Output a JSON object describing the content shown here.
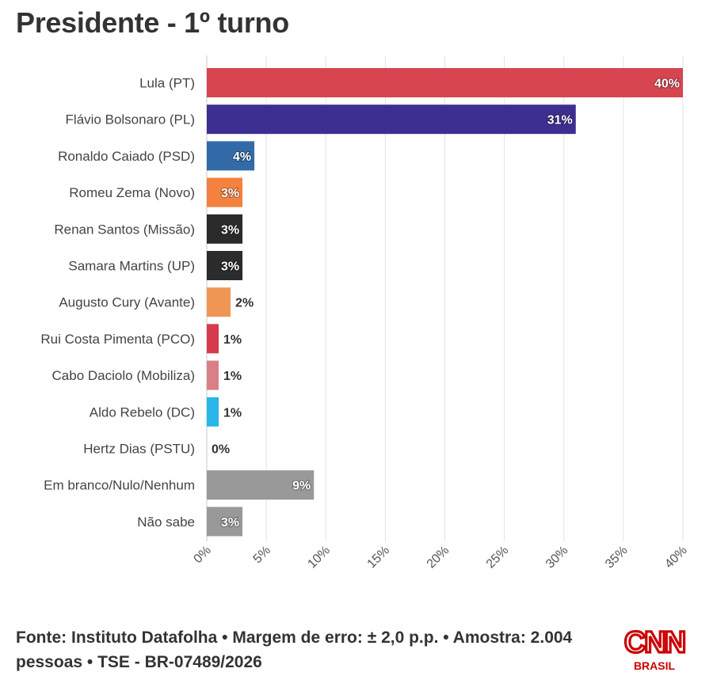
{
  "title": "Presidente - 1º turno",
  "source": "Fonte: Instituto Datafolha • Margem de erro: ± 2,0 p.p. • Amostra: 2.004 pessoas • TSE - BR-07489/2026",
  "logo": {
    "name": "CNN",
    "sub": "BRASIL",
    "color": "#cc0000"
  },
  "chart_data": {
    "type": "bar",
    "orientation": "horizontal",
    "title": "Presidente - 1º turno",
    "xlabel": "",
    "ylabel": "",
    "xlim": [
      0,
      40
    ],
    "ticks": [
      0,
      5,
      10,
      15,
      20,
      25,
      30,
      35,
      40
    ],
    "tick_labels": [
      "0%",
      "5%",
      "10%",
      "15%",
      "20%",
      "25%",
      "30%",
      "35%",
      "40%"
    ],
    "grid": true,
    "categories": [
      "Lula (PT)",
      "Flávio Bolsonaro (PL)",
      "Ronaldo Caiado (PSD)",
      "Romeu Zema (Novo)",
      "Renan Santos (Missão)",
      "Samara Martins (UP)",
      "Augusto Cury (Avante)",
      "Rui Costa Pimenta (PCO)",
      "Cabo Daciolo (Mobiliza)",
      "Aldo Rebelo (DC)",
      "Hertz Dias (PSTU)",
      "Em branco/Nulo/Nenhum",
      "Não sabe"
    ],
    "values": [
      40,
      31,
      4,
      3,
      3,
      3,
      2,
      1,
      1,
      1,
      0,
      9,
      3
    ],
    "value_labels": [
      "40%",
      "31%",
      "4%",
      "3%",
      "3%",
      "3%",
      "2%",
      "1%",
      "1%",
      "1%",
      "0%",
      "9%",
      "3%"
    ],
    "colors": [
      "#d64550",
      "#3d2e91",
      "#336ba8",
      "#f5813f",
      "#2b2b2b",
      "#2b2b2b",
      "#f09655",
      "#d63a4d",
      "#d97f86",
      "#29b6e8",
      "#cccccc",
      "#999999",
      "#999999"
    ]
  }
}
